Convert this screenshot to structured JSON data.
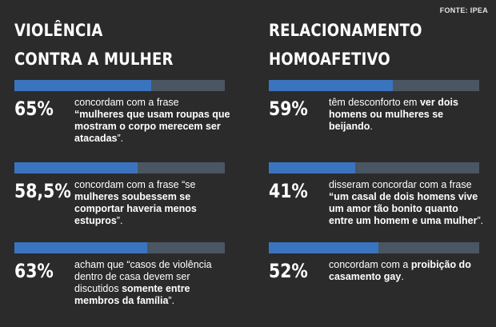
{
  "source": "FONTE: IPEA",
  "chart_data": [
    {
      "type": "bar",
      "title": "VIOLÊNCIA CONTRA A MULHER",
      "title_lines": [
        "VIOLÊNCIA",
        "CONTRA A MULHER"
      ],
      "xlim": [
        0,
        100
      ],
      "items": [
        {
          "value": 65,
          "label": "65%",
          "text": [
            {
              "t": "concordam com a frase ",
              "b": false
            },
            {
              "t": "“mulheres que usam roupas que mostram o corpo merecem ser atacadas",
              "b": true
            },
            {
              "t": "”.",
              "b": false
            }
          ]
        },
        {
          "value": 58.5,
          "label": "58,5%",
          "text": [
            {
              "t": "concordam com a frase “se ",
              "b": false
            },
            {
              "t": "mulheres soubessem se comportar haveria menos estupros",
              "b": true
            },
            {
              "t": "”.",
              "b": false
            }
          ]
        },
        {
          "value": 63,
          "label": "63%",
          "text": [
            {
              "t": "acham que “casos de violência dentro de casa devem ser discutidos ",
              "b": false
            },
            {
              "t": "somente entre membros da família",
              "b": true
            },
            {
              "t": "”.",
              "b": false
            }
          ]
        }
      ]
    },
    {
      "type": "bar",
      "title": "RELACIONAMENTO HOMOAFETIVO",
      "title_lines": [
        "RELACIONAMENTO",
        "HOMOAFETIVO"
      ],
      "xlim": [
        0,
        100
      ],
      "items": [
        {
          "value": 59,
          "label": "59%",
          "text": [
            {
              "t": "têm desconforto em ",
              "b": false
            },
            {
              "t": "ver dois homens ou mulheres se beijando",
              "b": true
            },
            {
              "t": ".",
              "b": false
            }
          ]
        },
        {
          "value": 41,
          "label": "41%",
          "text": [
            {
              "t": "disseram concordar com a frase ",
              "b": false
            },
            {
              "t": "“um casal de dois homens vive um amor tão bonito quanto entre um homem e uma mulher",
              "b": true
            },
            {
              "t": "”.",
              "b": false
            }
          ]
        },
        {
          "value": 52,
          "label": "52%",
          "text": [
            {
              "t": "concordam com a ",
              "b": false
            },
            {
              "t": "proibição do casamento gay",
              "b": true
            },
            {
              "t": ".",
              "b": false
            }
          ]
        }
      ]
    }
  ]
}
